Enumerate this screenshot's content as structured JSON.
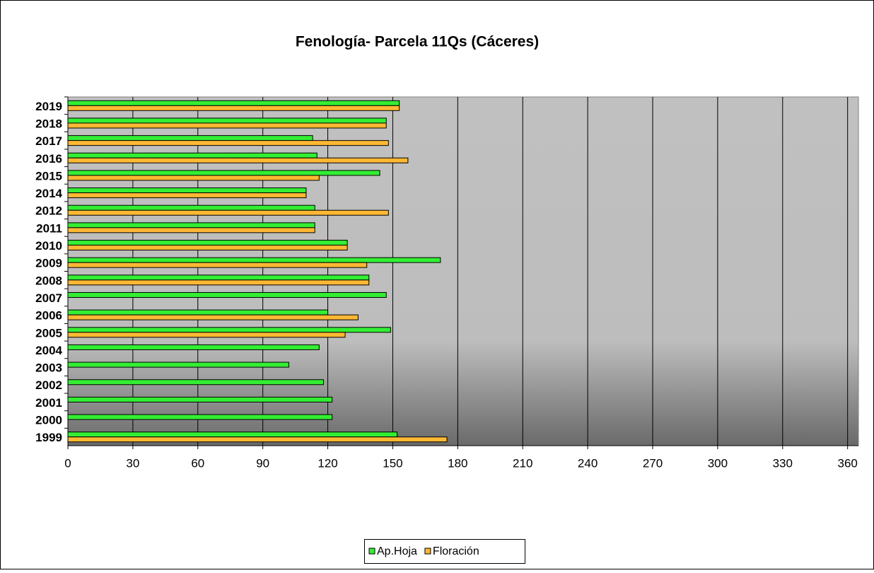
{
  "chart_data": {
    "type": "hbar",
    "title": "Fenología- Parcela 11Qs (Cáceres)",
    "categories": [
      "1999",
      "2000",
      "2001",
      "2002",
      "2003",
      "2004",
      "2005",
      "2006",
      "2007",
      "2008",
      "2009",
      "2010",
      "2011",
      "2012",
      "2014",
      "2015",
      "2016",
      "2017",
      "2018",
      "2019"
    ],
    "series": [
      {
        "name": "Ap.Hoja",
        "color": "#33ee33",
        "values": [
          152,
          122,
          122,
          118,
          102,
          116,
          149,
          120,
          147,
          139,
          172,
          129,
          114,
          114,
          110,
          144,
          115,
          113,
          147,
          153
        ]
      },
      {
        "name": "Floración",
        "color": "#ffb833",
        "values": [
          175,
          null,
          null,
          null,
          null,
          null,
          128,
          134,
          null,
          139,
          138,
          129,
          114,
          148,
          110,
          116,
          157,
          148,
          147,
          153
        ]
      }
    ],
    "xlim": [
      0,
      365
    ],
    "xticks": [
      0,
      30,
      60,
      90,
      120,
      150,
      180,
      210,
      240,
      270,
      300,
      330,
      360
    ],
    "grid": true,
    "legend": "bottom"
  }
}
